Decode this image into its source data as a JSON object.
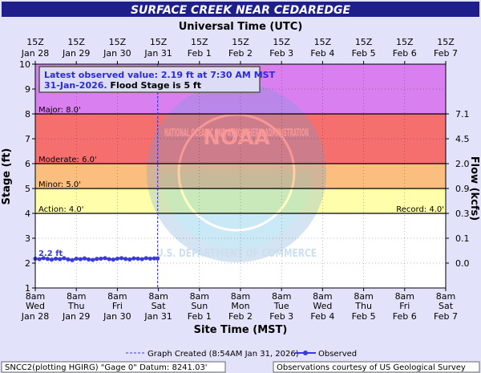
{
  "chart_data": {
    "type": "line",
    "title": "SURFACE CREEK NEAR CEDAREDGE",
    "top_axis_label": "Universal Time (UTC)",
    "top_ticks": [
      {
        "hour": "15Z",
        "date": "Jan 28"
      },
      {
        "hour": "15Z",
        "date": "Jan 29"
      },
      {
        "hour": "15Z",
        "date": "Jan 30"
      },
      {
        "hour": "15Z",
        "date": "Jan 31"
      },
      {
        "hour": "15Z",
        "date": "Feb 1"
      },
      {
        "hour": "15Z",
        "date": "Feb 2"
      },
      {
        "hour": "15Z",
        "date": "Feb 3"
      },
      {
        "hour": "15Z",
        "date": "Feb 4"
      },
      {
        "hour": "15Z",
        "date": "Feb 5"
      },
      {
        "hour": "15Z",
        "date": "Feb 6"
      },
      {
        "hour": "15Z",
        "date": "Feb 7"
      }
    ],
    "bottom_ticks": [
      {
        "time": "8am",
        "day": "Wed",
        "date": "Jan 28"
      },
      {
        "time": "8am",
        "day": "Thu",
        "date": "Jan 29"
      },
      {
        "time": "8am",
        "day": "Fri",
        "date": "Jan 30"
      },
      {
        "time": "8am",
        "day": "Sat",
        "date": "Jan 31"
      },
      {
        "time": "8am",
        "day": "Sun",
        "date": "Feb 1"
      },
      {
        "time": "8am",
        "day": "Mon",
        "date": "Feb 2"
      },
      {
        "time": "8am",
        "day": "Tue",
        "date": "Feb 3"
      },
      {
        "time": "8am",
        "day": "Wed",
        "date": "Feb 4"
      },
      {
        "time": "8am",
        "day": "Thu",
        "date": "Feb 5"
      },
      {
        "time": "8am",
        "day": "Fri",
        "date": "Feb 6"
      },
      {
        "time": "8am",
        "day": "Sat",
        "date": "Feb 7"
      }
    ],
    "xlabel": "Site Time (MST)",
    "ylabel_left": "Stage (ft)",
    "ylabel_right": "Flow (kcfs)",
    "ylim": [
      1,
      10
    ],
    "y_ticks": [
      1,
      2,
      3,
      4,
      5,
      6,
      7,
      8,
      9,
      10
    ],
    "flow_ticks": [
      {
        "stage": 2,
        "label": "0.0"
      },
      {
        "stage": 3,
        "label": "0.1"
      },
      {
        "stage": 4,
        "label": "0.3"
      },
      {
        "stage": 5,
        "label": "0.9"
      },
      {
        "stage": 6,
        "label": "2.0"
      },
      {
        "stage": 7,
        "label": "4.5"
      },
      {
        "stage": 8,
        "label": "7.1"
      }
    ],
    "flood_categories": [
      {
        "name": "Major",
        "label": "Major: 8.0'",
        "from": 8,
        "to": 10,
        "color": "#d97ff0"
      },
      {
        "name": "Moderate",
        "label": "Moderate: 6.0'",
        "from": 6,
        "to": 8,
        "color": "#f56f6f"
      },
      {
        "name": "Minor",
        "label": "Minor: 5.0'",
        "from": 5,
        "to": 6,
        "color": "#fbbe7e"
      },
      {
        "name": "Action",
        "label": "Action: 4.0'",
        "from": 4,
        "to": 5,
        "color": "#ffffab"
      }
    ],
    "record_label": "Record: 4.0'",
    "annotation": {
      "line1": "Latest observed value: 2.19 ft at 7:30 AM MST",
      "line2_date": "31-Jan-2026.",
      "line2_flood": " Flood Stage is 5 ft"
    },
    "point_label": "2.2 ft",
    "series": [
      {
        "name": "Observed",
        "color": "#3b3bd8",
        "x_days": [
          0.0,
          0.1,
          0.2,
          0.3,
          0.4,
          0.5,
          0.6,
          0.7,
          0.8,
          0.9,
          1.0,
          1.1,
          1.2,
          1.3,
          1.4,
          1.5,
          1.6,
          1.7,
          1.8,
          1.9,
          2.0,
          2.1,
          2.2,
          2.3,
          2.4,
          2.5,
          2.6,
          2.7,
          2.8,
          2.9,
          2.98
        ],
        "values": [
          2.18,
          2.16,
          2.2,
          2.17,
          2.14,
          2.18,
          2.16,
          2.2,
          2.15,
          2.12,
          2.18,
          2.16,
          2.19,
          2.15,
          2.13,
          2.17,
          2.18,
          2.2,
          2.16,
          2.14,
          2.18,
          2.2,
          2.17,
          2.15,
          2.19,
          2.18,
          2.16,
          2.2,
          2.18,
          2.19,
          2.19
        ]
      }
    ],
    "created_line_label": "Graph Created (8:54AM Jan 31, 2026)",
    "created_line_day": 2.98,
    "legend_observed": "Observed"
  },
  "footer": {
    "left": "SNCC2(plotting HGIRG) \"Gage 0\" Datum: 8241.03'",
    "right": "Observations courtesy of US Geological Survey"
  },
  "watermark": {
    "ring_text": "NATIONAL OCEANIC AND ATMOSPHERIC ADMINISTRATION",
    "center_text": "NOAA",
    "bottom_text": "U.S. DEPARTMENT OF COMMERCE"
  },
  "colors": {
    "background": "#e2e2fa",
    "title_bar": "#1f1f8c",
    "series": "#3b3bd8",
    "annotation_text": "#2b2bd6"
  }
}
